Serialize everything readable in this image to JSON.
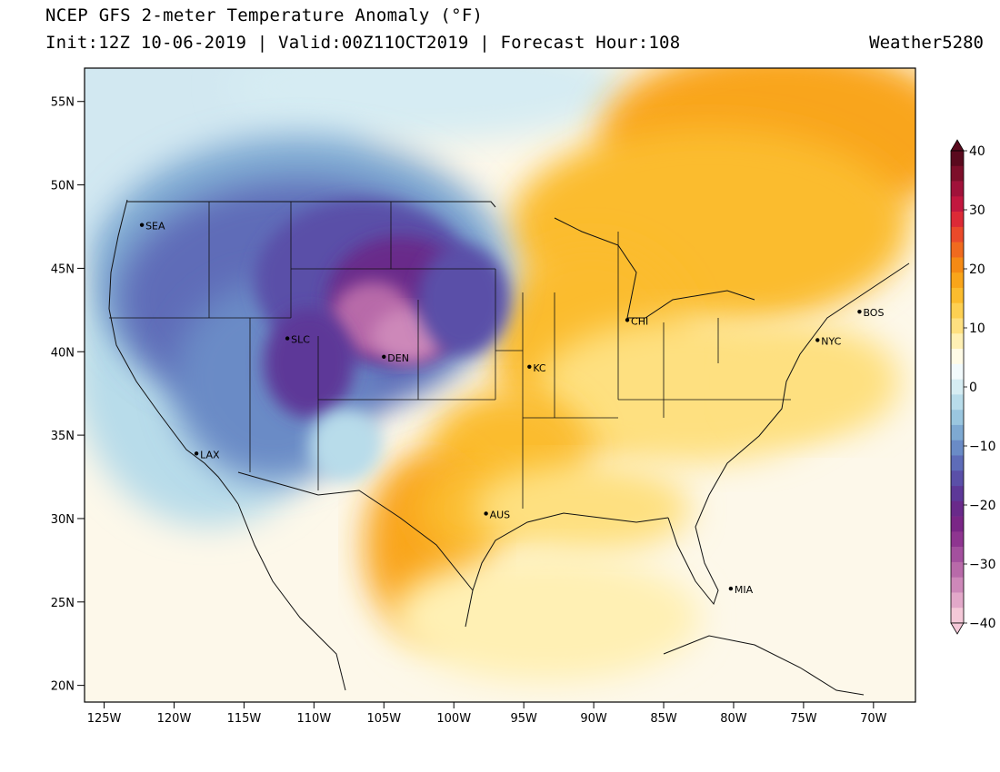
{
  "header": {
    "title": "NCEP GFS 2-meter Temperature Anomaly (°F)",
    "subtitle": "Init:12Z 10-06-2019 | Valid:00Z11OCT2019 | Forecast Hour:108",
    "brand": "Weather5280"
  },
  "map": {
    "lat_labels": [
      "55N",
      "50N",
      "45N",
      "40N",
      "35N",
      "30N",
      "25N",
      "20N"
    ],
    "lon_labels": [
      "125W",
      "120W",
      "115W",
      "110W",
      "105W",
      "100W",
      "95W",
      "90W",
      "85W",
      "80W",
      "75W",
      "70W"
    ],
    "cities": [
      {
        "code": "SEA",
        "lat": 47.6,
        "lon": -122.3
      },
      {
        "code": "SLC",
        "lat": 40.8,
        "lon": -111.9
      },
      {
        "code": "DEN",
        "lat": 39.7,
        "lon": -105.0
      },
      {
        "code": "LAX",
        "lat": 33.9,
        "lon": -118.4
      },
      {
        "code": "AUS",
        "lat": 30.3,
        "lon": -97.7
      },
      {
        "code": "KC",
        "lat": 39.1,
        "lon": -94.6
      },
      {
        "code": "CHI",
        "lat": 41.9,
        "lon": -87.6
      },
      {
        "code": "NYC",
        "lat": 40.7,
        "lon": -74.0
      },
      {
        "code": "BOS",
        "lat": 42.4,
        "lon": -71.0
      },
      {
        "code": "MIA",
        "lat": 25.8,
        "lon": -80.2
      }
    ]
  },
  "colorbar": {
    "labels": [
      "40",
      "30",
      "20",
      "10",
      "0",
      "−10",
      "−20",
      "−30",
      "−40"
    ],
    "colors_top_to_bottom": [
      "#5a0a1e",
      "#7d0f2a",
      "#a0123a",
      "#c2173f",
      "#dc2a36",
      "#ea4a2a",
      "#f06a1e",
      "#f58a14",
      "#f9a51a",
      "#fbbc2e",
      "#fdd052",
      "#fee080",
      "#fff0b4",
      "#fffbe6",
      "#f2fafc",
      "#d6edf3",
      "#b8dcea",
      "#9ac6df",
      "#7ea9d2",
      "#6a8bc6",
      "#5e6cb8",
      "#5a4fa8",
      "#5d3898",
      "#692a8a",
      "#7a2686",
      "#8e3590",
      "#a3509e",
      "#b86aa9",
      "#cd88b9",
      "#e2a8c9",
      "#f4c8d8"
    ]
  }
}
